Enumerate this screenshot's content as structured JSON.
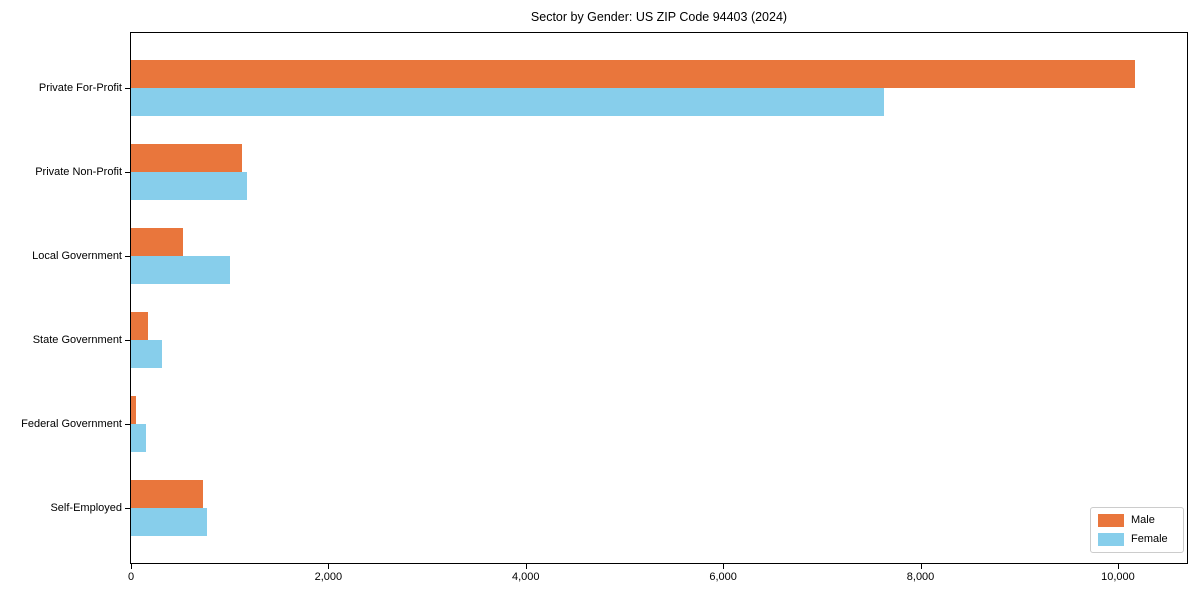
{
  "chart_data": {
    "type": "bar",
    "orientation": "horizontal",
    "title": "Sector by Gender: US ZIP Code 94403 (2024)",
    "categories": [
      "Private For-Profit",
      "Private Non-Profit",
      "Local Government",
      "State Government",
      "Federal Government",
      "Self-Employed"
    ],
    "series": [
      {
        "name": "Male",
        "color": "#E9763C",
        "values": [
          10170,
          1120,
          530,
          175,
          50,
          730
        ]
      },
      {
        "name": "Female",
        "color": "#87CEEB",
        "values": [
          7630,
          1170,
          1000,
          310,
          150,
          770
        ]
      }
    ],
    "xlabel": "",
    "ylabel": "",
    "xlim": [
      0,
      10700
    ],
    "x_ticks": [
      0,
      2000,
      4000,
      6000,
      8000,
      10000
    ],
    "x_tick_labels": [
      "0",
      "2,000",
      "4,000",
      "6,000",
      "8,000",
      "10,000"
    ],
    "grid": false,
    "legend_position": "lower right"
  }
}
